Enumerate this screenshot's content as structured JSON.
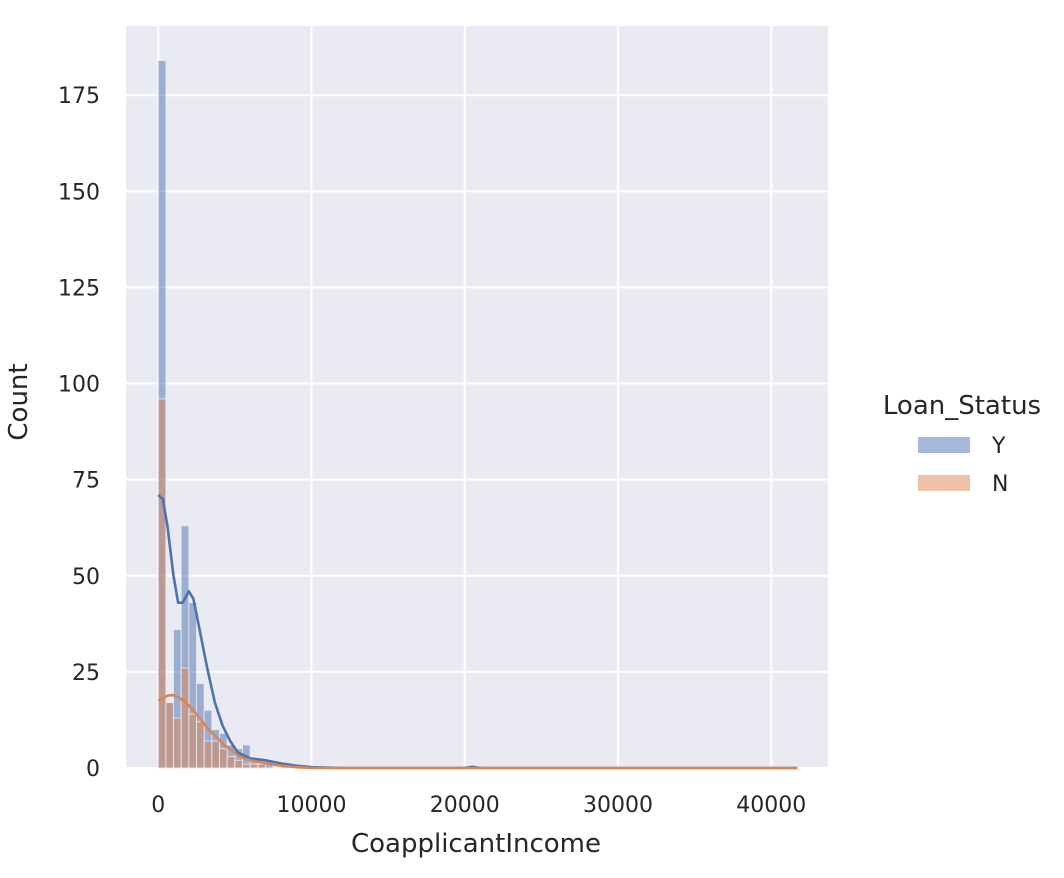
{
  "chart_data": {
    "type": "bar",
    "subtype": "histogram-with-kde",
    "title": "",
    "xlabel": "CoapplicantIncome",
    "ylabel": "Count",
    "xlim": [
      -2100,
      43700
    ],
    "ylim": [
      0,
      193
    ],
    "xticks": [
      0,
      10000,
      20000,
      30000,
      40000
    ],
    "yticks": [
      0,
      25,
      50,
      75,
      100,
      125,
      150,
      175
    ],
    "grid": true,
    "legend": {
      "title": "Loan_Status",
      "placement": "right",
      "entries": [
        "Y",
        "N"
      ]
    },
    "bin_width": 500,
    "series": [
      {
        "name": "Y",
        "color": "#4c72b0",
        "bars": [
          {
            "x0": 0,
            "x1": 500,
            "y": 184
          },
          {
            "x0": 500,
            "x1": 1000,
            "y": 17
          },
          {
            "x0": 1000,
            "x1": 1500,
            "y": 36
          },
          {
            "x0": 1500,
            "x1": 2000,
            "y": 63
          },
          {
            "x0": 2000,
            "x1": 2500,
            "y": 43
          },
          {
            "x0": 2500,
            "x1": 3000,
            "y": 22
          },
          {
            "x0": 3000,
            "x1": 3500,
            "y": 15
          },
          {
            "x0": 3500,
            "x1": 4000,
            "y": 10
          },
          {
            "x0": 4000,
            "x1": 4500,
            "y": 9
          },
          {
            "x0": 4500,
            "x1": 5000,
            "y": 6
          },
          {
            "x0": 5000,
            "x1": 5500,
            "y": 5
          },
          {
            "x0": 5500,
            "x1": 6000,
            "y": 6
          },
          {
            "x0": 6000,
            "x1": 6500,
            "y": 2
          },
          {
            "x0": 6500,
            "x1": 7000,
            "y": 1
          },
          {
            "x0": 7000,
            "x1": 7500,
            "y": 2
          },
          {
            "x0": 8000,
            "x1": 8500,
            "y": 1
          },
          {
            "x0": 11000,
            "x1": 11500,
            "y": 0.5
          },
          {
            "x0": 20000,
            "x1": 20500,
            "y": 0.5
          }
        ],
        "kde": [
          [
            0,
            71
          ],
          [
            300,
            70
          ],
          [
            600,
            63
          ],
          [
            1000,
            50
          ],
          [
            1300,
            43
          ],
          [
            1600,
            43
          ],
          [
            2000,
            46
          ],
          [
            2300,
            44
          ],
          [
            2700,
            36
          ],
          [
            3200,
            26
          ],
          [
            3700,
            17
          ],
          [
            4200,
            11
          ],
          [
            4700,
            7
          ],
          [
            5200,
            4
          ],
          [
            6000,
            2.5
          ],
          [
            7000,
            2
          ],
          [
            8000,
            1.2
          ],
          [
            9000,
            0.6
          ],
          [
            10000,
            0.2
          ],
          [
            12000,
            0
          ],
          [
            20000,
            0
          ],
          [
            20500,
            0.3
          ],
          [
            21000,
            0
          ],
          [
            41700,
            0
          ]
        ]
      },
      {
        "name": "N",
        "color": "#dd8452",
        "bars": [
          {
            "x0": 0,
            "x1": 500,
            "y": 96
          },
          {
            "x0": 500,
            "x1": 1000,
            "y": 17
          },
          {
            "x0": 1000,
            "x1": 1500,
            "y": 13
          },
          {
            "x0": 1500,
            "x1": 2000,
            "y": 26
          },
          {
            "x0": 2000,
            "x1": 2500,
            "y": 14
          },
          {
            "x0": 2500,
            "x1": 3000,
            "y": 12
          },
          {
            "x0": 3000,
            "x1": 3500,
            "y": 7
          },
          {
            "x0": 3500,
            "x1": 4000,
            "y": 7
          },
          {
            "x0": 4000,
            "x1": 4500,
            "y": 5
          },
          {
            "x0": 4500,
            "x1": 5000,
            "y": 3
          },
          {
            "x0": 5000,
            "x1": 5500,
            "y": 2
          },
          {
            "x0": 5500,
            "x1": 6000,
            "y": 1
          },
          {
            "x0": 6000,
            "x1": 6500,
            "y": 1
          },
          {
            "x0": 6500,
            "x1": 7000,
            "y": 1
          }
        ],
        "kde": [
          [
            0,
            17.5
          ],
          [
            300,
            18
          ],
          [
            600,
            18.8
          ],
          [
            900,
            19
          ],
          [
            1300,
            18.5
          ],
          [
            1800,
            17
          ],
          [
            2300,
            15
          ],
          [
            2800,
            12.5
          ],
          [
            3300,
            10
          ],
          [
            3800,
            8
          ],
          [
            4300,
            6
          ],
          [
            4800,
            4.5
          ],
          [
            5300,
            3
          ],
          [
            6000,
            2
          ],
          [
            7000,
            1.2
          ],
          [
            8000,
            0.6
          ],
          [
            9000,
            0.2
          ],
          [
            10000,
            0
          ],
          [
            41700,
            0
          ]
        ]
      }
    ]
  }
}
